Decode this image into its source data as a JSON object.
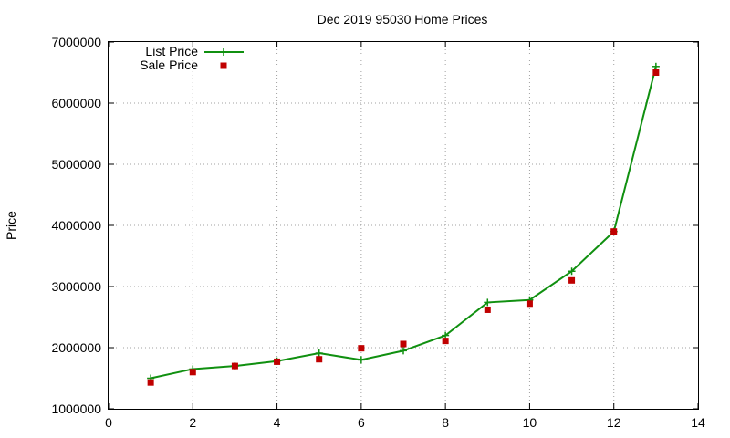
{
  "chart_data": {
    "type": "line",
    "title": "Dec 2019 95030 Home Prices",
    "xlabel": "",
    "ylabel": "Price",
    "xlim": [
      0,
      14
    ],
    "ylim": [
      1000000,
      7000000
    ],
    "xticks": [
      0,
      2,
      4,
      6,
      8,
      10,
      12,
      14
    ],
    "yticks": [
      1000000,
      2000000,
      3000000,
      4000000,
      5000000,
      6000000,
      7000000
    ],
    "grid": true,
    "legend_position": "top-left",
    "series": [
      {
        "name": "List Price",
        "style": "lines-with-plus-markers",
        "color": "#109010",
        "x": [
          1,
          2,
          3,
          4,
          5,
          6,
          7,
          8,
          9,
          10,
          11,
          12,
          13
        ],
        "y": [
          1500000,
          1650000,
          1700000,
          1780000,
          1910000,
          1800000,
          1950000,
          2200000,
          2740000,
          2780000,
          3250000,
          3900000,
          6600000
        ]
      },
      {
        "name": "Sale Price",
        "style": "square-points",
        "color": "#c00000",
        "x": [
          1,
          2,
          3,
          4,
          5,
          6,
          7,
          8,
          9,
          10,
          11,
          12,
          13
        ],
        "y": [
          1430000,
          1600000,
          1700000,
          1770000,
          1810000,
          1990000,
          2060000,
          2110000,
          2620000,
          2720000,
          3100000,
          3900000,
          6500000
        ]
      }
    ]
  }
}
